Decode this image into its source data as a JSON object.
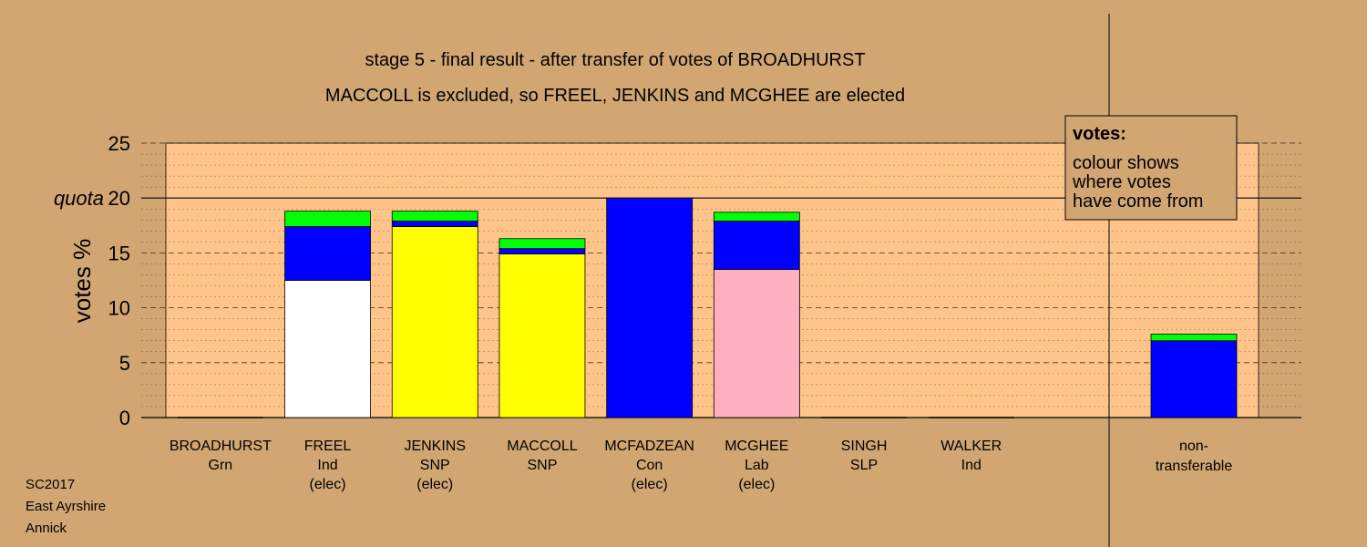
{
  "chart_data": {
    "type": "bar",
    "title_line1": "stage 5 - final result - after transfer of votes of BROADHURST",
    "title_line2": "MACCOLL is excluded, so FREEL, JENKINS and MCGHEE are elected",
    "ylabel": "votes %",
    "ylim": [
      0,
      25
    ],
    "yticks": [
      0,
      5,
      10,
      15,
      20,
      25
    ],
    "quota": 20,
    "quota_label": "quota",
    "grid": "dashed",
    "legend_position": "top-right",
    "legend": {
      "title": "votes:",
      "lines": [
        "colour shows",
        "where votes",
        "have come from"
      ]
    },
    "colors": {
      "background": "#d2a673",
      "plot_area": "#ffc48a",
      "Ind": "#ffffff",
      "SNP": "#ffff00",
      "Con": "#0000ff",
      "Lab": "#ffb0c0",
      "Grn": "#00ff00"
    },
    "candidates": [
      {
        "name": "BROADHURST",
        "party": "Grn",
        "status": "",
        "segments": []
      },
      {
        "name": "FREEL",
        "party": "Ind",
        "status": "(elec)",
        "segments": [
          {
            "source": "Ind",
            "color": "#ffffff",
            "value": 12.5
          },
          {
            "source": "Con",
            "color": "#0000ff",
            "value": 4.9
          },
          {
            "source": "Grn",
            "color": "#00ff00",
            "value": 1.4
          }
        ]
      },
      {
        "name": "JENKINS",
        "party": "SNP",
        "status": "(elec)",
        "segments": [
          {
            "source": "SNP",
            "color": "#ffff00",
            "value": 17.4
          },
          {
            "source": "Con",
            "color": "#0000ff",
            "value": 0.5
          },
          {
            "source": "Grn",
            "color": "#00ff00",
            "value": 0.9
          }
        ]
      },
      {
        "name": "MACCOLL",
        "party": "SNP",
        "status": "",
        "segments": [
          {
            "source": "SNP",
            "color": "#ffff00",
            "value": 14.9
          },
          {
            "source": "Con",
            "color": "#0000ff",
            "value": 0.5
          },
          {
            "source": "Grn",
            "color": "#00ff00",
            "value": 0.9
          }
        ]
      },
      {
        "name": "MCFADZEAN",
        "party": "Con",
        "status": "(elec)",
        "segments": [
          {
            "source": "Con",
            "color": "#0000ff",
            "value": 20.0
          }
        ]
      },
      {
        "name": "MCGHEE",
        "party": "Lab",
        "status": "(elec)",
        "segments": [
          {
            "source": "Lab",
            "color": "#ffb0c0",
            "value": 13.5
          },
          {
            "source": "Con",
            "color": "#0000ff",
            "value": 4.4
          },
          {
            "source": "Grn",
            "color": "#00ff00",
            "value": 0.8
          }
        ]
      },
      {
        "name": "SINGH",
        "party": "SLP",
        "status": "",
        "segments": []
      },
      {
        "name": "WALKER",
        "party": "Ind",
        "status": "",
        "segments": []
      }
    ],
    "nontransferable": {
      "label_line1": "non-",
      "label_line2": "transferable",
      "segments": [
        {
          "source": "Con",
          "color": "#0000ff",
          "value": 7.0
        },
        {
          "source": "Grn",
          "color": "#00ff00",
          "value": 0.6
        }
      ]
    }
  },
  "footer": {
    "line1": "SC2017",
    "line2": "East Ayrshire",
    "line3": "Annick"
  }
}
